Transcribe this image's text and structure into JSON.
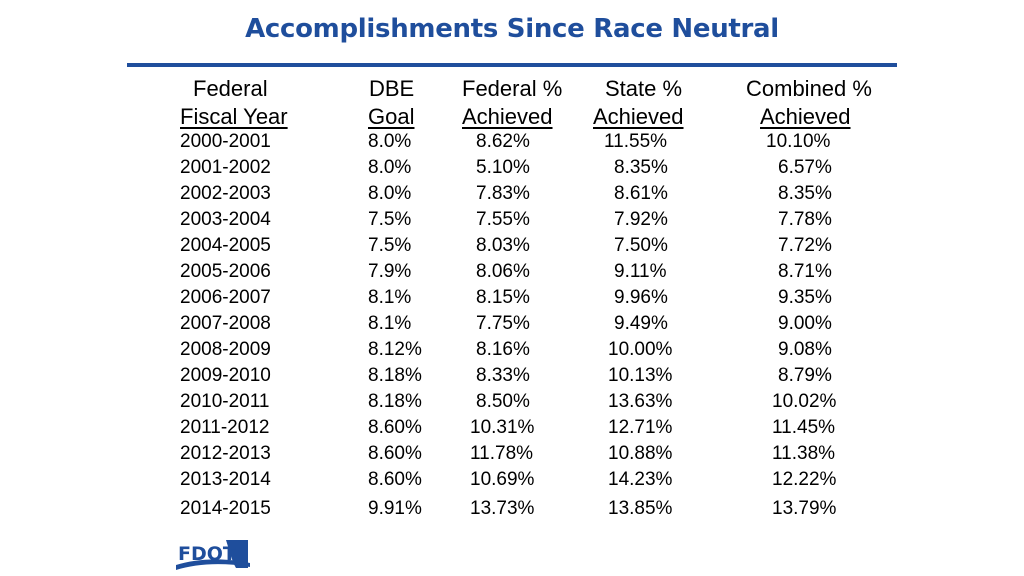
{
  "title": "Accomplishments Since Race Neutral",
  "headers": {
    "row1": [
      "Federal",
      "DBE",
      "Federal %",
      "State %",
      "Combined %"
    ],
    "row2": [
      "Fiscal Year",
      "Goal",
      "Achieved",
      "Achieved",
      "Achieved"
    ]
  },
  "rows": [
    [
      "2000-2001",
      "8.0%",
      "8.62%",
      "11.55%",
      "10.10%"
    ],
    [
      "2001-2002",
      "8.0%",
      "5.10%",
      "8.35%",
      "6.57%"
    ],
    [
      "2002-2003",
      "8.0%",
      "7.83%",
      "8.61%",
      "8.35%"
    ],
    [
      "2003-2004",
      "7.5%",
      "7.55%",
      "7.92%",
      "7.78%"
    ],
    [
      "2004-2005",
      "7.5%",
      "8.03%",
      "7.50%",
      "7.72%"
    ],
    [
      "2005-2006",
      "7.9%",
      "8.06%",
      "9.11%",
      "8.71%"
    ],
    [
      "2006-2007",
      "8.1%",
      "8.15%",
      "9.96%",
      "9.35%"
    ],
    [
      "2007-2008",
      "8.1%",
      "7.75%",
      "9.49%",
      "9.00%"
    ],
    [
      "2008-2009",
      "8.12%",
      "8.16%",
      "10.00%",
      "9.08%"
    ],
    [
      "2009-2010",
      "8.18%",
      "8.33%",
      "10.13%",
      "8.79%"
    ],
    [
      "2010-2011",
      "8.18%",
      "8.50%",
      "13.63%",
      "10.02%"
    ],
    [
      "2011-2012",
      "8.60%",
      "10.31%",
      "12.71%",
      "11.45%"
    ],
    [
      "2012-2013",
      "8.60%",
      "11.78%",
      "10.88%",
      "11.38%"
    ],
    [
      "2013-2014",
      "8.60%",
      "10.69%",
      "14.23%",
      "12.22%"
    ],
    [
      "2014-2015",
      "9.91%",
      "13.73%",
      "13.85%",
      "13.79%"
    ]
  ],
  "logo": {
    "text": "FDOT",
    "color": "#1f4e9c"
  }
}
